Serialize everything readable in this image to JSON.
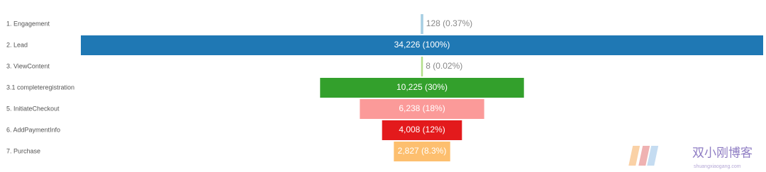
{
  "chart_data": {
    "type": "funnel",
    "categories": [
      "1. Engagement",
      "2. Lead",
      "3. ViewContent",
      "3.1 completeregistration",
      "5. InitiateCheckout",
      "6. AddPaymentInfo",
      "7. Purchase"
    ],
    "values": [
      128,
      34226,
      8,
      10225,
      6238,
      4008,
      2827
    ],
    "value_labels": [
      "128 (0.37%)",
      "34,226 (100%)",
      "8 (0.02%)",
      "10,225 (30%)",
      "6,238 (18%)",
      "4,008 (12%)",
      "2,827 (8.3%)"
    ],
    "colors": [
      "#a6cee3",
      "#1f78b4",
      "#b2df8a",
      "#33a02c",
      "#fb9a99",
      "#e31a1c",
      "#fdbf6f"
    ]
  },
  "watermark": {
    "title": "双小刚博客",
    "url": "shuangxiaogang.com"
  }
}
